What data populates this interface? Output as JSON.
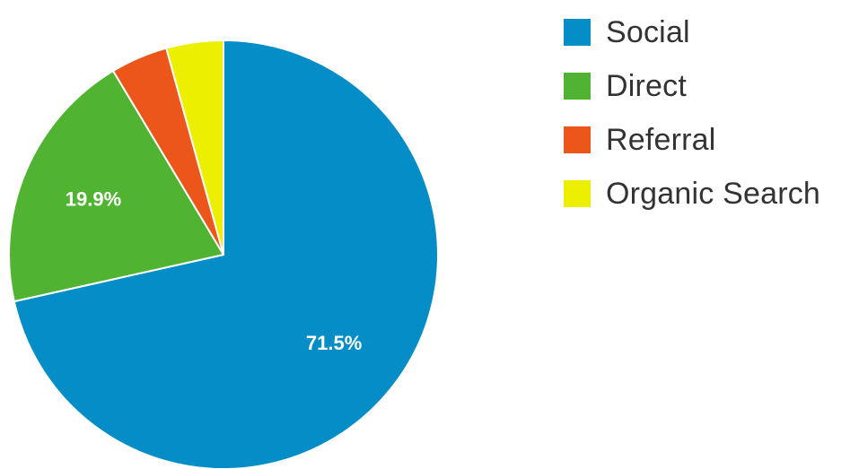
{
  "chart_data": {
    "type": "pie",
    "categories": [
      "Social",
      "Direct",
      "Referral",
      "Organic Search"
    ],
    "values": [
      71.5,
      19.9,
      4.3,
      4.3
    ],
    "data_labels": [
      "71.5%",
      "19.9%",
      "",
      ""
    ],
    "colors": [
      "#058dc7",
      "#50b432",
      "#ed561b",
      "#edef00"
    ],
    "start_angle_deg": 0,
    "direction": "clockwise",
    "legend_position": "right",
    "title": ""
  }
}
